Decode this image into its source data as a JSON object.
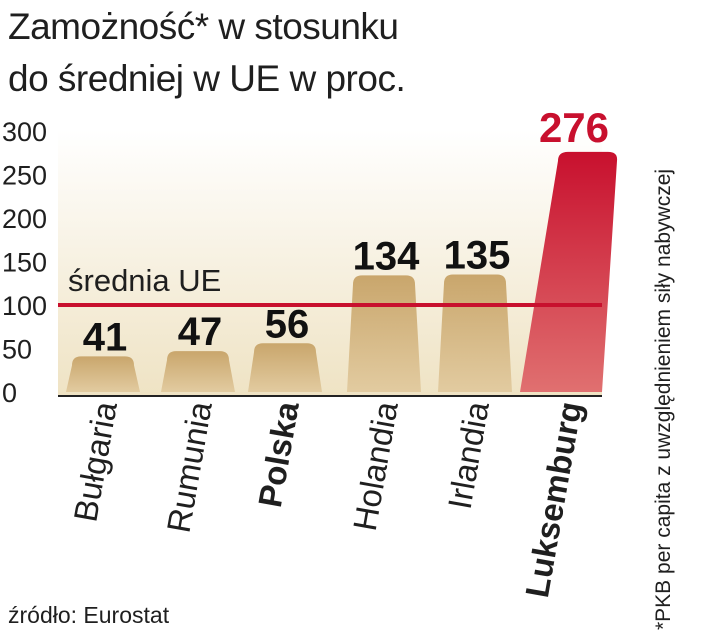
{
  "header": {
    "title_line1": "Zamożność* w stosunku",
    "title_line2": "do średniej w UE w proc."
  },
  "footnote": "*PKB per capita z uwzględnieniem siły nabywczej",
  "source": "źródło: Eurostat",
  "chart_data": {
    "type": "bar",
    "title": "Zamożność* w stosunku do średniej w UE w proc.",
    "categories": [
      "Bułgaria",
      "Rumunia",
      "Polska",
      "Holandia",
      "Irlandia",
      "Luksemburg"
    ],
    "values": [
      41,
      47,
      56,
      134,
      135,
      276
    ],
    "value_labels": [
      "41",
      "47",
      "56",
      "134",
      "135",
      "276"
    ],
    "highlight_category": "Luksemburg",
    "bold_category": "Polska",
    "ylim": [
      0,
      300
    ],
    "yticks": [
      0,
      50,
      100,
      150,
      200,
      250,
      300
    ],
    "ytick_labels": [
      "0",
      "50",
      "100",
      "150",
      "200",
      "250",
      "300"
    ],
    "reference_line": {
      "value": 100,
      "label": "średnia UE"
    },
    "grid": false,
    "colors": {
      "bar": "#c7a56c",
      "highlight_top": "#c8102e",
      "highlight_bottom": "#e07070",
      "reference_line": "#c8102e",
      "highlight_label": "#c8102e",
      "background": "#f4ecd6"
    }
  }
}
